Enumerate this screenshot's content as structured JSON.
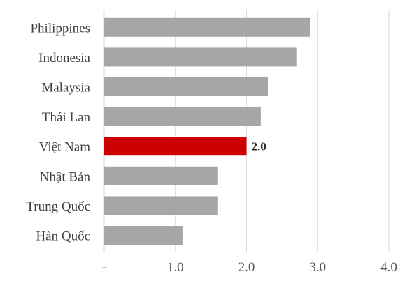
{
  "chart_data": {
    "type": "bar",
    "orientation": "horizontal",
    "categories": [
      "Philippines",
      "Indonesia",
      "Malaysia",
      "Thái Lan",
      "Việt Nam",
      "Nhật Bản",
      "Trung Quốc",
      "Hàn Quốc"
    ],
    "values": [
      2.9,
      2.7,
      2.3,
      2.2,
      2.0,
      1.6,
      1.6,
      1.1
    ],
    "highlight": {
      "category": "Việt Nam",
      "value_label": "2.0",
      "color": "#cc0000"
    },
    "bar_color": "#a6a6a6",
    "xlim": [
      0,
      4
    ],
    "xticks": [
      {
        "value": 0,
        "label": "-"
      },
      {
        "value": 1,
        "label": "1.0"
      },
      {
        "value": 2,
        "label": "2.0"
      },
      {
        "value": 3,
        "label": "3.0"
      },
      {
        "value": 4,
        "label": "4.0"
      }
    ],
    "grid": "vertical",
    "grid_color": "#d9d9d9",
    "title": "",
    "xlabel": "",
    "ylabel": ""
  }
}
